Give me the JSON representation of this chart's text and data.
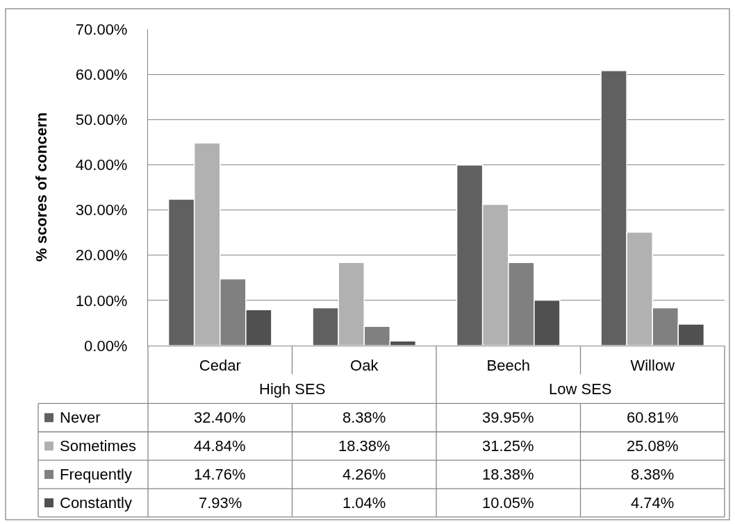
{
  "chart_data": {
    "type": "bar",
    "ylabel": "% scores of concern",
    "categories": [
      "Cedar",
      "Oak",
      "Beech",
      "Willow"
    ],
    "annotations": [
      "High SES",
      "Low SES"
    ],
    "series": [
      {
        "name": "Never",
        "color": "#606060",
        "values": [
          32.4,
          8.38,
          39.95,
          60.81
        ],
        "value_labels": [
          "32.40%",
          "8.38%",
          "39.95%",
          "60.81%"
        ]
      },
      {
        "name": "Sometimes",
        "color": "#b1b1b1",
        "values": [
          44.84,
          18.38,
          31.25,
          25.08
        ],
        "value_labels": [
          "44.84%",
          "18.38%",
          "31.25%",
          "25.08%"
        ]
      },
      {
        "name": "Frequently",
        "color": "#808080",
        "values": [
          14.76,
          4.26,
          18.38,
          8.38
        ],
        "value_labels": [
          "14.76%",
          "4.26%",
          "18.38%",
          "8.38%"
        ]
      },
      {
        "name": "Constantly",
        "color": "#505050",
        "values": [
          7.93,
          1.04,
          10.05,
          4.74
        ],
        "value_labels": [
          "7.93%",
          "1.04%",
          "10.05%",
          "4.74%"
        ]
      }
    ],
    "ylim": [
      0,
      70
    ],
    "yticks": [
      {
        "value": 0,
        "label": "0.00%"
      },
      {
        "value": 10,
        "label": "10.00%"
      },
      {
        "value": 20,
        "label": "20.00%"
      },
      {
        "value": 30,
        "label": "30.00%"
      },
      {
        "value": 40,
        "label": "40.00%"
      },
      {
        "value": 50,
        "label": "50.00%"
      },
      {
        "value": 60,
        "label": "60.00%"
      },
      {
        "value": 70,
        "label": "70.00%"
      }
    ],
    "grid": "y",
    "legend": "bottom"
  }
}
